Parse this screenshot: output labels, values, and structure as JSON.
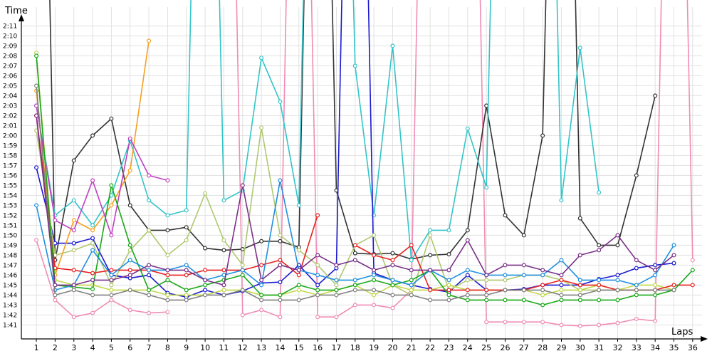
{
  "chart_data": {
    "type": "line",
    "ylabel": "Time",
    "xlabel": "Laps",
    "grid": true,
    "y_unit": "seconds",
    "ylim_seconds": [
      99.6,
      133.6
    ],
    "xlim": [
      0.2,
      36.5
    ],
    "y_ticks": [
      "1:41",
      "1:42",
      "1:43",
      "1:44",
      "1:45",
      "1:46",
      "1:47",
      "1:48",
      "1:49",
      "1:50",
      "1:51",
      "1:52",
      "1:53",
      "1:54",
      "1:55",
      "1:56",
      "1:57",
      "1:58",
      "1:59",
      "2:00",
      "2:01",
      "2:02",
      "2:03",
      "2:04",
      "2:05",
      "2:06",
      "2:07",
      "2:08",
      "2:09",
      "2:10",
      "2:11"
    ],
    "x_ticks": [
      1,
      2,
      3,
      4,
      5,
      6,
      7,
      8,
      9,
      10,
      11,
      12,
      13,
      14,
      15,
      16,
      17,
      18,
      19,
      20,
      21,
      22,
      23,
      24,
      25,
      26,
      27,
      28,
      29,
      30,
      31,
      32,
      33,
      34,
      35,
      36
    ],
    "x": [
      1,
      2,
      3,
      4,
      5,
      6,
      7,
      8,
      9,
      10,
      11,
      12,
      13,
      14,
      15,
      16,
      17,
      18,
      19,
      20,
      21,
      22,
      23,
      24,
      25,
      26,
      27,
      28,
      29,
      30,
      31,
      32,
      33,
      34,
      35,
      36
    ],
    "series": [
      {
        "color": "#f08cb4",
        "values": [
          109.5,
          103.5,
          101.8,
          102.2,
          103.5,
          102.5,
          102.2,
          102.3,
          null,
          200,
          200,
          102.0,
          102.5,
          101.8,
          200,
          101.8,
          101.8,
          103.0,
          103.0,
          102.7,
          104.5,
          200,
          200,
          200,
          101.3,
          101.3,
          101.3,
          101.3,
          101.0,
          100.9,
          101.0,
          101.2,
          101.6,
          101.4,
          200,
          107.5
        ]
      },
      {
        "color": "#333333",
        "values": [
          200,
          107.5,
          117.5,
          120.0,
          121.7,
          113.0,
          110.5,
          110.5,
          110.8,
          108.7,
          108.5,
          108.6,
          109.4,
          109.4,
          108.8,
          200,
          114.5,
          108.2,
          108.1,
          108.2,
          107.6,
          108.0,
          108.1,
          110.5,
          123.0,
          112.0,
          110.0,
          120.0,
          200,
          111.7,
          109.0,
          109.0,
          116.0,
          124.0,
          null,
          null
        ]
      },
      {
        "color": "#33c4c8",
        "values": [
          123.0,
          112.0,
          113.5,
          111.0,
          114.0,
          119.5,
          113.5,
          112.0,
          112.5,
          200,
          113.5,
          114.5,
          127.8,
          123.4,
          113.0,
          200,
          200,
          127.0,
          112.0,
          129.0,
          107.5,
          110.5,
          110.5,
          120.7,
          114.8,
          200,
          200,
          200,
          113.5,
          128.8,
          114.3,
          null,
          null,
          null,
          null,
          null
        ]
      },
      {
        "color": "#1a1ad0",
        "values": [
          116.8,
          109.2,
          109.2,
          109.7,
          106.0,
          105.7,
          106.0,
          104.2,
          103.8,
          104.5,
          104.0,
          104.4,
          105.2,
          105.3,
          107.0,
          105.0,
          106.7,
          200,
          106.2,
          105.5,
          105.0,
          104.6,
          104.3,
          106.0,
          104.5,
          104.5,
          104.6,
          105.0,
          105.0,
          105.0,
          105.6,
          106.0,
          106.7,
          107.0,
          107.2,
          null
        ]
      },
      {
        "color": "#b0c870",
        "values": [
          120.5,
          108.0,
          108.5,
          109.2,
          105.0,
          108.5,
          110.5,
          108.0,
          109.5,
          114.2,
          109.5,
          107.0,
          120.8,
          110.0,
          108.5,
          107.0,
          105.0,
          109.0,
          110.0,
          105.0,
          104.0,
          110.0,
          104.5,
          105.5,
          105.5,
          105.5,
          106.0,
          106.0,
          105.5,
          104.5,
          104.5,
          104.5,
          104.5,
          104.5,
          null,
          null
        ]
      },
      {
        "color": "#f5a020",
        "values": [
          124.5,
          106.0,
          111.5,
          110.5,
          113.0,
          116.5,
          129.5,
          null,
          null,
          null,
          null,
          null,
          null,
          null,
          null,
          null,
          null,
          null,
          null,
          null,
          null,
          null,
          null,
          null,
          null,
          null,
          null,
          null,
          null,
          null,
          null,
          null,
          null,
          null,
          null,
          null
        ]
      },
      {
        "color": "#c040c0",
        "values": [
          123.0,
          111.5,
          110.5,
          115.5,
          110.0,
          119.7,
          116.0,
          115.5,
          null,
          null,
          null,
          null,
          null,
          null,
          null,
          null,
          null,
          null,
          null,
          null,
          null,
          null,
          null,
          null,
          null,
          null,
          null,
          null,
          null,
          null,
          null,
          null,
          null,
          null,
          null,
          null
        ]
      },
      {
        "color": "#c0d848",
        "values": [
          128.3,
          105.5,
          105.0,
          105.0,
          104.5,
          104.5,
          104.5,
          104.0,
          104.0,
          104.0,
          104.5,
          104.5,
          104.0,
          104.0,
          104.5,
          104.0,
          104.5,
          105.0,
          104.0,
          105.0,
          104.5,
          104.5,
          105.0,
          104.5,
          104.5,
          104.5,
          104.5,
          104.0,
          104.5,
          104.5,
          105.0,
          104.5,
          105.0,
          105.0,
          104.5,
          null
        ]
      },
      {
        "color": "#e82020",
        "values": [
          122.0,
          106.7,
          106.5,
          106.2,
          106.5,
          106.5,
          106.5,
          106.0,
          106.0,
          106.5,
          106.5,
          106.5,
          107.0,
          107.5,
          106.0,
          112.0,
          null,
          109.0,
          108.0,
          107.5,
          109.0,
          104.5,
          104.5,
          104.5,
          104.5,
          104.5,
          104.5,
          105.0,
          105.5,
          105.0,
          105.0,
          104.5,
          104.5,
          104.5,
          105.0,
          105.0
        ]
      },
      {
        "color": "#18a818",
        "values": [
          128.0,
          105.0,
          104.8,
          104.6,
          115.0,
          109.0,
          104.5,
          105.5,
          104.5,
          105.0,
          105.5,
          106.0,
          104.0,
          104.0,
          105.0,
          104.5,
          104.5,
          105.0,
          105.5,
          105.0,
          105.5,
          106.5,
          104.0,
          103.5,
          103.5,
          103.5,
          103.5,
          103.0,
          103.5,
          103.5,
          103.5,
          103.5,
          104.0,
          104.0,
          104.5,
          106.5
        ]
      },
      {
        "color": "#2090e0",
        "values": [
          113.0,
          104.5,
          105.0,
          108.5,
          106.0,
          107.5,
          106.5,
          106.5,
          107.0,
          105.5,
          106.0,
          106.5,
          105.0,
          115.5,
          106.5,
          106.0,
          105.5,
          105.5,
          106.0,
          105.5,
          105.0,
          106.5,
          105.5,
          106.5,
          106.0,
          106.0,
          106.0,
          106.0,
          107.5,
          105.5,
          105.5,
          105.5,
          105.0,
          106.0,
          109.0,
          null
        ]
      },
      {
        "color": "#808080",
        "values": [
          125.0,
          104.0,
          104.5,
          104.0,
          104.0,
          104.5,
          104.0,
          103.5,
          103.5,
          104.0,
          104.0,
          104.5,
          103.5,
          103.5,
          103.5,
          104.0,
          104.0,
          104.5,
          104.5,
          104.0,
          104.0,
          103.5,
          103.5,
          104.0,
          104.0,
          104.5,
          104.5,
          104.5,
          104.0,
          104.0,
          104.5,
          104.5,
          104.5,
          104.5,
          104.5,
          null
        ]
      },
      {
        "color": "#7a3088",
        "values": [
          122.0,
          105.0,
          105.0,
          105.5,
          105.5,
          106.0,
          107.0,
          106.5,
          106.5,
          105.5,
          105.0,
          115.0,
          105.5,
          107.0,
          106.5,
          108.0,
          107.0,
          107.5,
          106.5,
          107.0,
          106.5,
          106.5,
          106.5,
          109.5,
          106.0,
          107.0,
          107.0,
          106.5,
          106.0,
          108.0,
          108.5,
          110.0,
          107.5,
          106.5,
          108.0,
          null
        ]
      }
    ]
  }
}
